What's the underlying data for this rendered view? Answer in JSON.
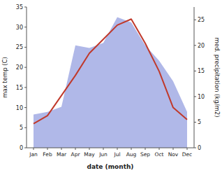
{
  "chart_data": {
    "type": "line",
    "categories": [
      "Jan",
      "Feb",
      "Mar",
      "Apr",
      "May",
      "Jun",
      "Jul",
      "Aug",
      "Sep",
      "Oct",
      "Nov",
      "Dec"
    ],
    "xlabel": "date (month)",
    "ylabel": "max temp (C)",
    "y2label": "med. precipitation (kg/m2)",
    "ylim": [
      0,
      35
    ],
    "yticks": [
      0,
      5,
      10,
      15,
      20,
      25,
      30,
      35
    ],
    "y2lim": [
      0,
      27.5
    ],
    "y2ticks": [
      0,
      5,
      10,
      15,
      20,
      25
    ],
    "series": [
      {
        "type": "area",
        "axis": "y2",
        "color": "#b0b8e8",
        "values": [
          6.5,
          7.0,
          8.0,
          20.0,
          19.5,
          20.5,
          25.5,
          24.5,
          20.0,
          17.0,
          13.0,
          7.0
        ]
      },
      {
        "type": "line",
        "color": "#c0392b",
        "values": [
          6.0,
          8.0,
          13.0,
          18.0,
          23.5,
          27.0,
          30.5,
          32.0,
          26.0,
          19.0,
          10.0,
          7.0
        ]
      }
    ]
  }
}
